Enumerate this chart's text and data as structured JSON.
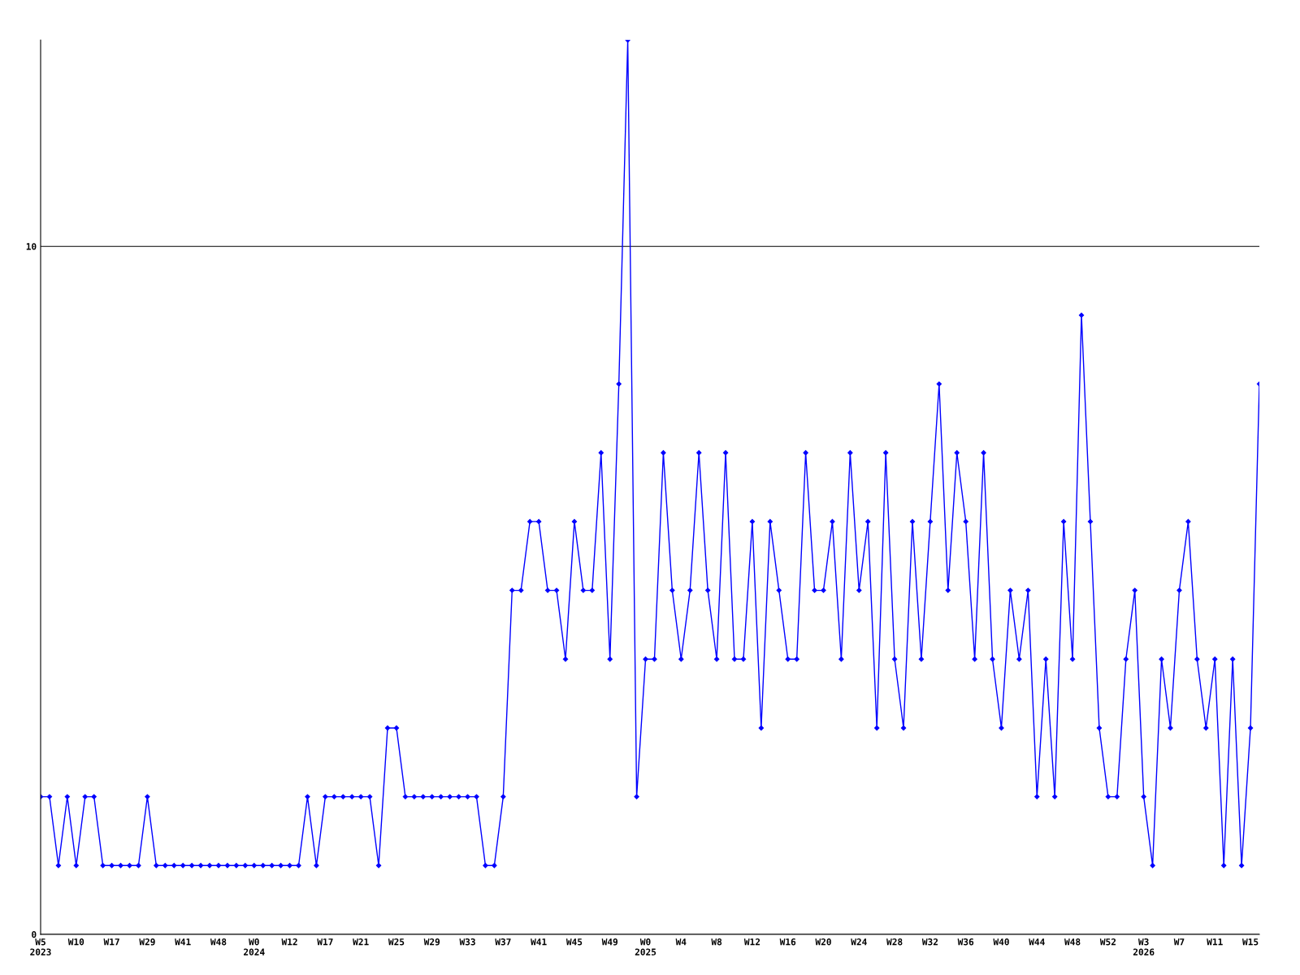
{
  "chart_data": {
    "type": "line",
    "categories": [
      "W5\n2023",
      null,
      null,
      null,
      "W10",
      null,
      null,
      null,
      "W17",
      null,
      null,
      null,
      "W29",
      null,
      null,
      null,
      "W41",
      null,
      null,
      null,
      "W48",
      null,
      null,
      null,
      "W0\n2024",
      null,
      null,
      null,
      "W12",
      null,
      null,
      null,
      "W17",
      null,
      null,
      null,
      "W21",
      null,
      null,
      null,
      "W25",
      null,
      null,
      null,
      "W29",
      null,
      null,
      null,
      "W33",
      null,
      null,
      null,
      "W37",
      null,
      null,
      null,
      "W41",
      null,
      null,
      null,
      "W45",
      null,
      null,
      null,
      "W49",
      null,
      null,
      null,
      "W0\n2025",
      null,
      null,
      null,
      "W4",
      null,
      null,
      null,
      "W8",
      null,
      null,
      null,
      "W12",
      null,
      null,
      null,
      "W16",
      null,
      null,
      null,
      "W20",
      null,
      null,
      null,
      "W24",
      null,
      null,
      null,
      "W28",
      null,
      null,
      null,
      "W32",
      null,
      null,
      null,
      "W36",
      null,
      null,
      null,
      "W40",
      null,
      null,
      null,
      "W44",
      null,
      null,
      null,
      "W48",
      null,
      null,
      null,
      "W52",
      null,
      null,
      null,
      "W3\n2026",
      null,
      null,
      null,
      "W7",
      null,
      null,
      null,
      "W11",
      null,
      null,
      null,
      "W15",
      null
    ],
    "series": [
      {
        "color": "#0000ff",
        "values": [
          2,
          2,
          1,
          2,
          1,
          2,
          2,
          1,
          1,
          1,
          1,
          1,
          2,
          1,
          1,
          1,
          1,
          1,
          1,
          1,
          1,
          1,
          1,
          1,
          1,
          1,
          1,
          1,
          1,
          1,
          2,
          1,
          2,
          2,
          2,
          2,
          2,
          2,
          1,
          3,
          3,
          2,
          2,
          2,
          2,
          2,
          2,
          2,
          2,
          2,
          1,
          1,
          2,
          5,
          5,
          6,
          6,
          5,
          5,
          4,
          6,
          5,
          5,
          7,
          4,
          8,
          13,
          2,
          4,
          4,
          7,
          5,
          4,
          5,
          7,
          5,
          4,
          7,
          4,
          4,
          6,
          3,
          6,
          5,
          4,
          4,
          7,
          5,
          5,
          6,
          4,
          7,
          5,
          6,
          3,
          7,
          4,
          3,
          6,
          4,
          6,
          8,
          5,
          7,
          6,
          4,
          7,
          4,
          3,
          5,
          4,
          5,
          2,
          4,
          2,
          6,
          4,
          9,
          6,
          3,
          2,
          2,
          4,
          5,
          2,
          1,
          4,
          3,
          5,
          6,
          4,
          3,
          4,
          1,
          4,
          1,
          3,
          8
        ]
      }
    ],
    "ylim": [
      0,
      13
    ],
    "yticks": [
      0,
      10
    ],
    "grid": "y",
    "marker": "diamond",
    "line_style": "solid",
    "legend": false
  }
}
